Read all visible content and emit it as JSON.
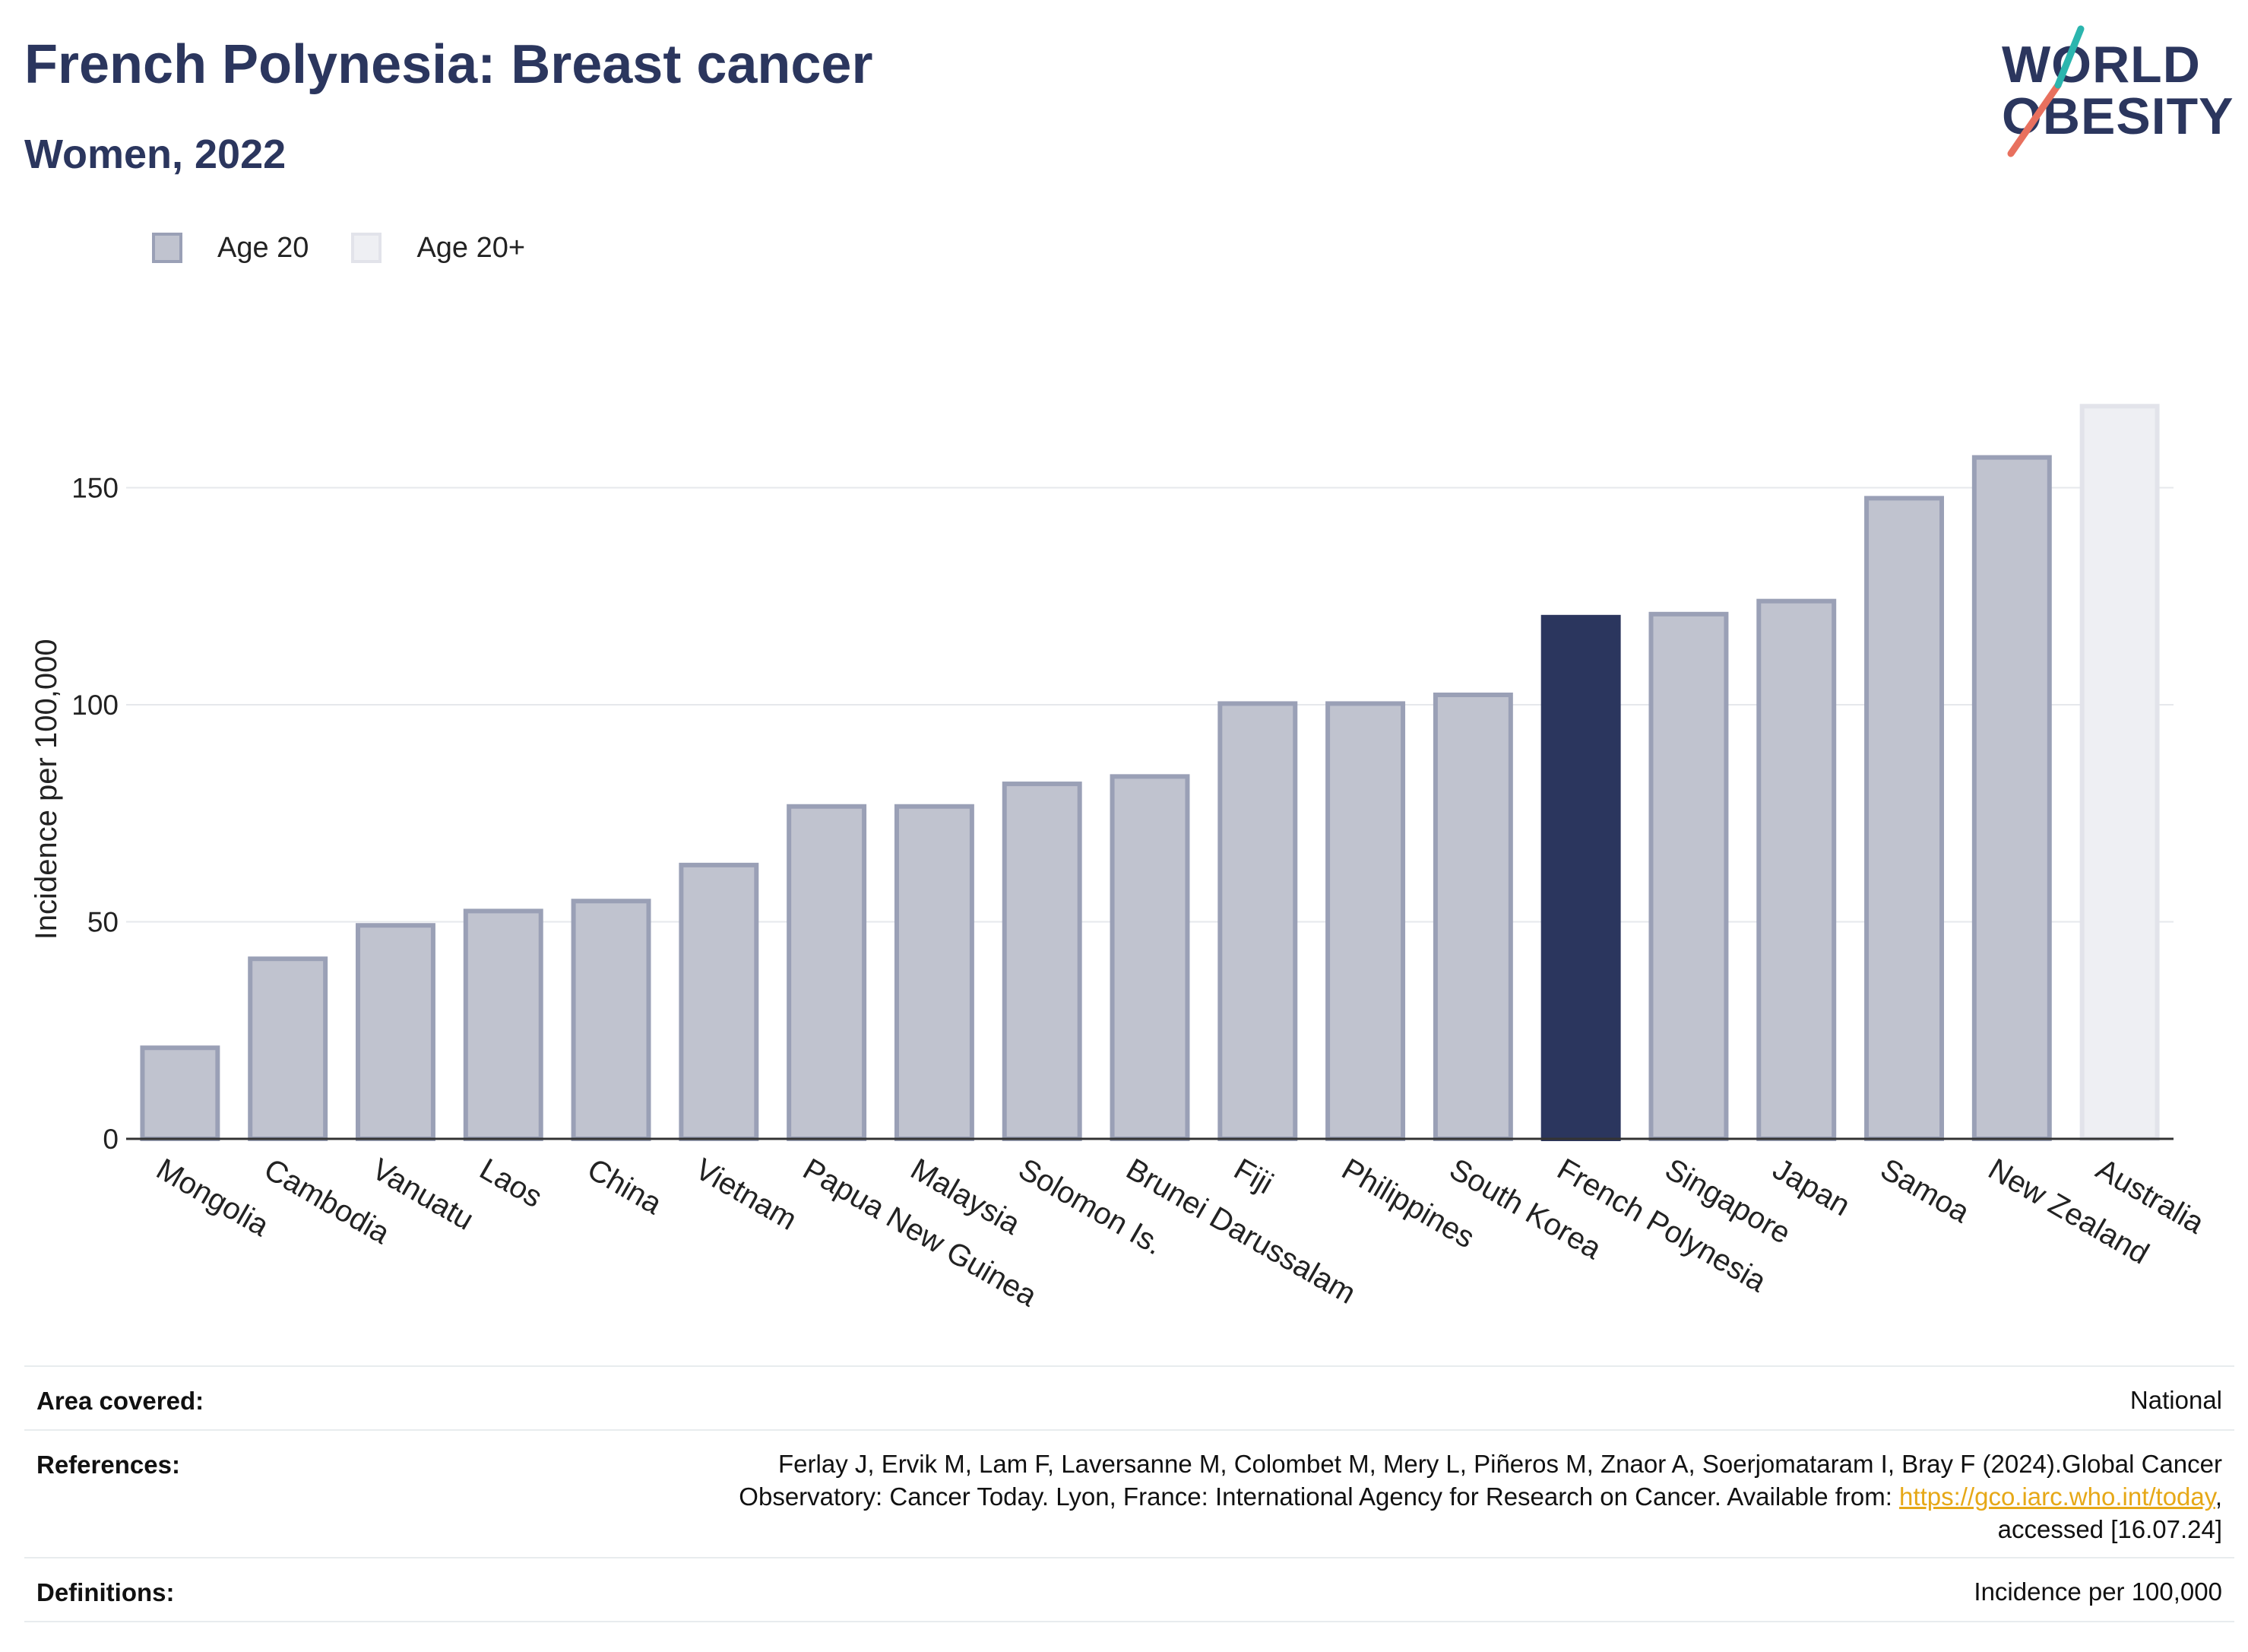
{
  "header": {
    "title": "French Polynesia: Breast cancer",
    "subtitle": "Women, 2022"
  },
  "logo": {
    "line1": "WORLD",
    "line2": "OBESITY",
    "colors": {
      "text": "#2b365e",
      "slash_teal": "#2bb5ae",
      "slash_red": "#e8705e"
    }
  },
  "legend": {
    "items": [
      {
        "label": "Age 20",
        "color": "#c0c3cf"
      },
      {
        "label": "Age 20+",
        "color": "#eeeff3"
      }
    ]
  },
  "chart_data": {
    "type": "bar",
    "ylabel": "Incidence per 100,000",
    "xlabel": "",
    "ylim": [
      0,
      175
    ],
    "yticks": [
      0,
      50,
      100,
      150
    ],
    "grid": true,
    "legend_position": "top-left",
    "categories": [
      "Mongolia",
      "Cambodia",
      "Vanuatu",
      "Laos",
      "China",
      "Vietnam",
      "Papua New Guinea",
      "Malaysia",
      "Solomon Is.",
      "Brunei Darussalam",
      "Fiji",
      "Philippines",
      "South Korea",
      "French Polynesia",
      "Singapore",
      "Japan",
      "Samoa",
      "New Zealand",
      "Australia"
    ],
    "values": [
      21.5,
      42,
      49.7,
      53,
      55.3,
      63.6,
      77.1,
      77.1,
      82.3,
      84,
      100.8,
      100.8,
      102.8,
      120.7,
      121.4,
      124.4,
      148.1,
      157.5,
      169.3
    ],
    "series_group": [
      "Age 20",
      "Age 20",
      "Age 20",
      "Age 20",
      "Age 20",
      "Age 20",
      "Age 20",
      "Age 20",
      "Age 20",
      "Age 20",
      "Age 20",
      "Age 20",
      "Age 20",
      "Age 20",
      "Age 20",
      "Age 20",
      "Age 20",
      "Age 20",
      "Age 20+"
    ],
    "highlight": "French Polynesia",
    "colors": {
      "default_fill": "#c0c3cf",
      "default_stroke": "#9aa0b6",
      "highlight_fill": "#2b365e",
      "age20plus_fill": "#eeeff3",
      "age20plus_stroke": "#e2e3ea"
    }
  },
  "info": {
    "area_label": "Area covered:",
    "area_value": "National",
    "references_label": "References:",
    "references_line1": "Ferlay J, Ervik M, Lam F, Laversanne M, Colombet M, Mery L, Piñeros M, Znaor A, Soerjomataram I, Bray F (2024).Global Cancer",
    "references_line2_prefix": "Observatory: Cancer Today. Lyon, France: International Agency for Research on Cancer. Available from: ",
    "references_link": "https://gco.iarc.who.int/today",
    "references_line2_suffix": ",",
    "references_line3": "accessed [16.07.24]",
    "definitions_label": "Definitions:",
    "definitions_value": "Incidence per 100,000"
  }
}
